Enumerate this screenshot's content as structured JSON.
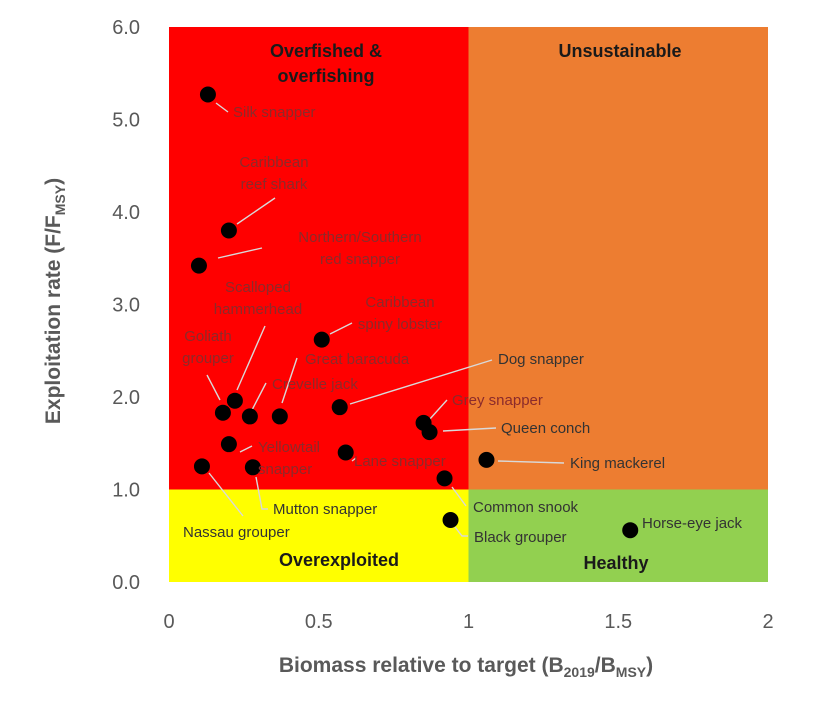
{
  "chart_data": {
    "type": "scatter",
    "xlabel": {
      "main": "Biomass relative to target (B",
      "sub1": "2019",
      "mid": "/B",
      "sub2": "MSY",
      "end": ")"
    },
    "ylabel": {
      "main": "Exploitation rate (F/F",
      "sub": "MSY",
      "end": ")"
    },
    "xlim": [
      0,
      2
    ],
    "ylim": [
      0,
      6
    ],
    "x_ticks": [
      "0",
      "0.5",
      "1",
      "1.5",
      "2"
    ],
    "y_ticks": [
      "0.0",
      "1.0",
      "2.0",
      "3.0",
      "4.0",
      "5.0",
      "6.0"
    ],
    "grid": false,
    "zones": [
      {
        "name": "overfished-overfishing",
        "label_lines": [
          "Overfished &",
          "overfishing"
        ],
        "x": [
          0,
          1
        ],
        "y": [
          1,
          6
        ],
        "color": "#ff0000"
      },
      {
        "name": "unsustainable",
        "label_lines": [
          "Unsustainable"
        ],
        "x": [
          1,
          2
        ],
        "y": [
          1,
          6
        ],
        "color": "#ed7d31"
      },
      {
        "name": "overexploited",
        "label_lines": [
          "Overexploited"
        ],
        "x": [
          0,
          1
        ],
        "y": [
          0,
          1
        ],
        "color": "#ffff00"
      },
      {
        "name": "healthy",
        "label_lines": [
          "Healthy"
        ],
        "x": [
          1,
          2
        ],
        "y": [
          0,
          1
        ],
        "color": "#92d050"
      }
    ],
    "points": [
      {
        "name": "Silk snapper",
        "x": 0.13,
        "y": 5.27
      },
      {
        "name": "Caribbean reef shark",
        "x": 0.2,
        "y": 3.8
      },
      {
        "name": "Northern/Southern red snapper",
        "x": 0.1,
        "y": 3.42
      },
      {
        "name": "Caribbean spiny lobster",
        "x": 0.51,
        "y": 2.62
      },
      {
        "name": "Scalloped hammerhead",
        "x": 0.22,
        "y": 1.96
      },
      {
        "name": "Goliath grouper",
        "x": 0.18,
        "y": 1.83
      },
      {
        "name": "Great baracuda",
        "x": 0.37,
        "y": 1.79
      },
      {
        "name": "Crevelle jack",
        "x": 0.27,
        "y": 1.79
      },
      {
        "name": "Dog snapper",
        "x": 0.57,
        "y": 1.89
      },
      {
        "name": "Grey snapper",
        "x": 0.85,
        "y": 1.72
      },
      {
        "name": "Queen conch",
        "x": 0.87,
        "y": 1.62
      },
      {
        "name": "Yellowtail snapper",
        "x": 0.2,
        "y": 1.49
      },
      {
        "name": "Lane snapper",
        "x": 0.59,
        "y": 1.4
      },
      {
        "name": "King mackerel",
        "x": 1.06,
        "y": 1.32
      },
      {
        "name": "Nassau grouper",
        "x": 0.11,
        "y": 1.25
      },
      {
        "name": "Mutton snapper",
        "x": 0.28,
        "y": 1.24
      },
      {
        "name": "Common snook",
        "x": 0.92,
        "y": 1.12
      },
      {
        "name": "Black grouper",
        "x": 0.94,
        "y": 0.67
      },
      {
        "name": "Horse-eye jack",
        "x": 1.54,
        "y": 0.56
      }
    ],
    "colors": {
      "label_on_red": "#8b2b2b",
      "label_on_light": "#333333",
      "tick_text": "#595959",
      "marker": "#000000",
      "leader": "#d9d9d9"
    }
  }
}
